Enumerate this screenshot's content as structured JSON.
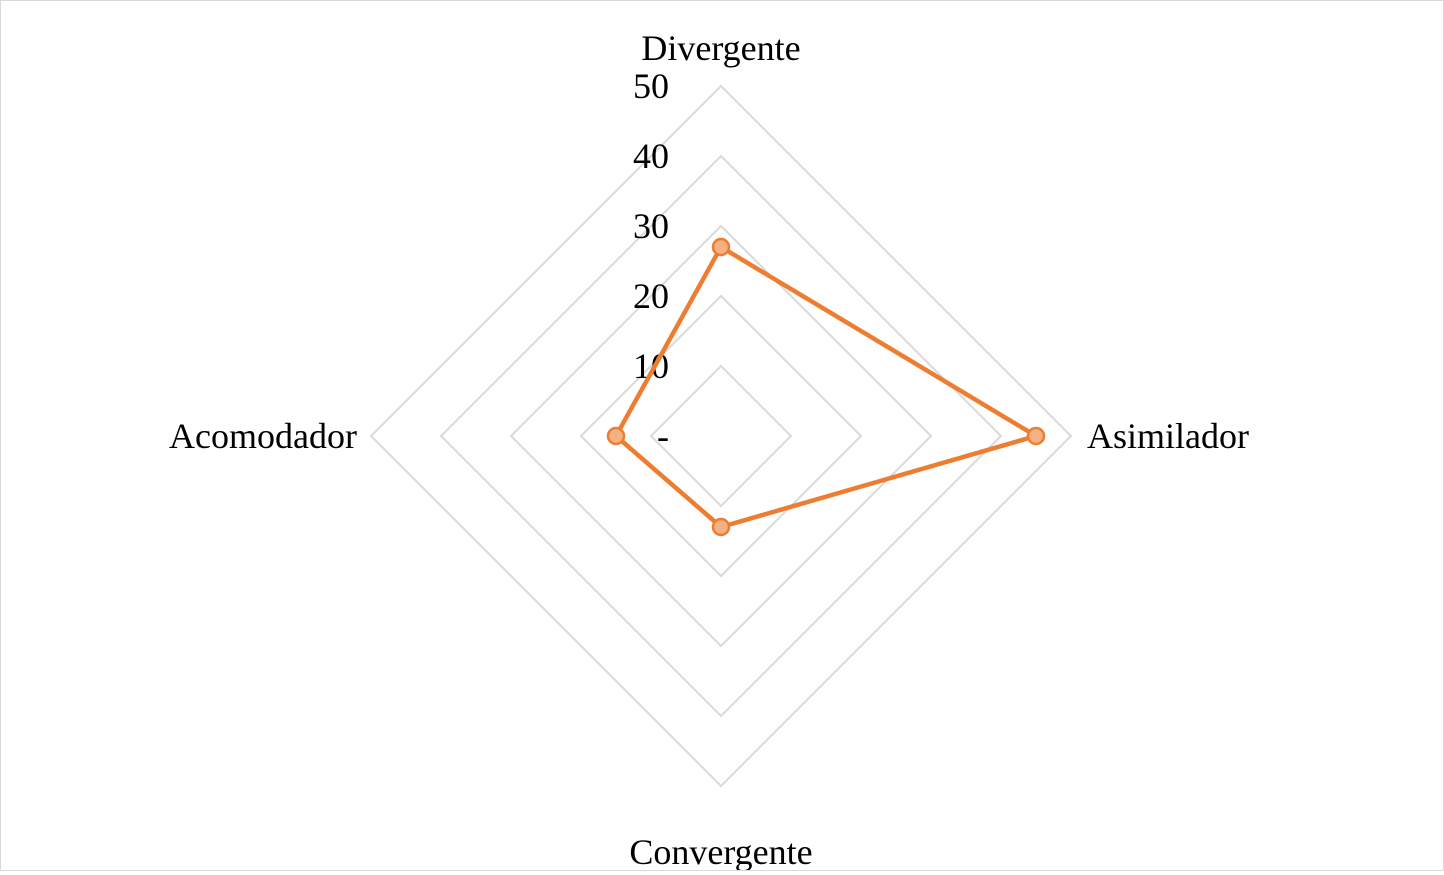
{
  "chart_data": {
    "type": "radar",
    "title": "",
    "categories": [
      "Divergente",
      "Asimilador",
      "Convergente",
      "Acomodador"
    ],
    "series": [
      {
        "values": [
          27,
          45,
          13,
          15
        ],
        "color": "#ED7D31",
        "marker_fill": "#F4B183"
      }
    ],
    "rlim": [
      0,
      50
    ],
    "ticks": [
      0,
      10,
      20,
      30,
      40,
      50
    ],
    "tick_labels": [
      "-",
      "10",
      "20",
      "30",
      "40",
      "50"
    ],
    "grid": true,
    "grid_color": "#d9d9d9",
    "legend": "none"
  }
}
